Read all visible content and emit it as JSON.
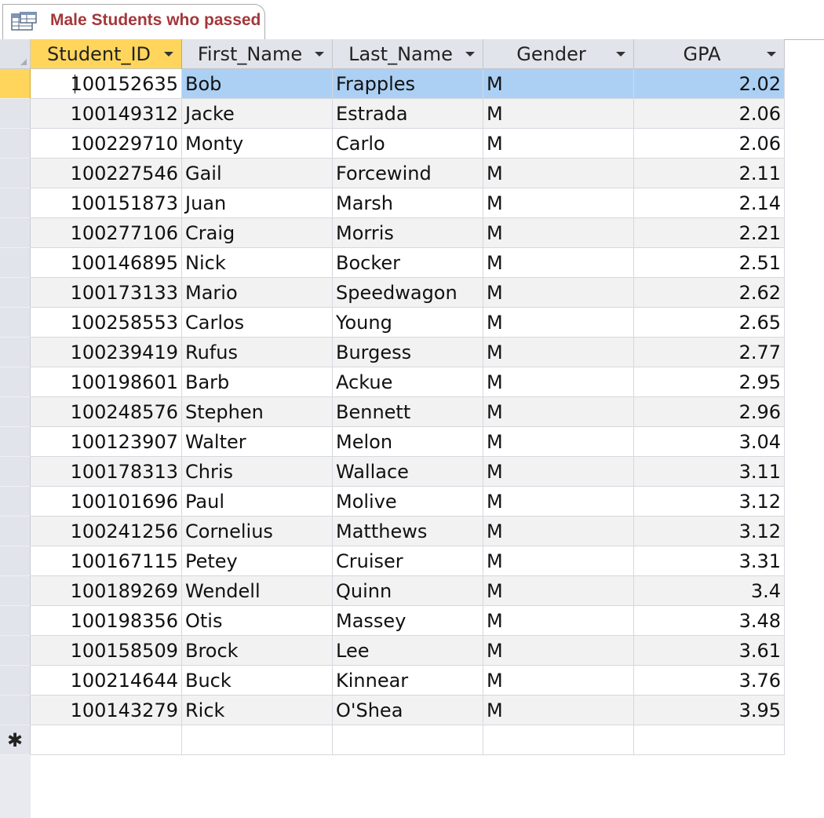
{
  "tab": {
    "title": "Male Students who passed",
    "icon": "datasheet-icon"
  },
  "columns": [
    {
      "key": "student_id",
      "label": "Student_ID"
    },
    {
      "key": "first_name",
      "label": "First_Name"
    },
    {
      "key": "last_name",
      "label": "Last_Name"
    },
    {
      "key": "gender",
      "label": "Gender"
    },
    {
      "key": "gpa",
      "label": "GPA"
    }
  ],
  "rows": [
    {
      "student_id": "100152635",
      "first_name": "Bob",
      "last_name": "Frapples",
      "gender": "M",
      "gpa": "2.02"
    },
    {
      "student_id": "100149312",
      "first_name": "Jacke",
      "last_name": "Estrada",
      "gender": "M",
      "gpa": "2.06"
    },
    {
      "student_id": "100229710",
      "first_name": "Monty",
      "last_name": "Carlo",
      "gender": "M",
      "gpa": "2.06"
    },
    {
      "student_id": "100227546",
      "first_name": "Gail",
      "last_name": "Forcewind",
      "gender": "M",
      "gpa": "2.11"
    },
    {
      "student_id": "100151873",
      "first_name": "Juan",
      "last_name": "Marsh",
      "gender": "M",
      "gpa": "2.14"
    },
    {
      "student_id": "100277106",
      "first_name": "Craig",
      "last_name": "Morris",
      "gender": "M",
      "gpa": "2.21"
    },
    {
      "student_id": "100146895",
      "first_name": "Nick",
      "last_name": "Bocker",
      "gender": "M",
      "gpa": "2.51"
    },
    {
      "student_id": "100173133",
      "first_name": "Mario",
      "last_name": "Speedwagon",
      "gender": "M",
      "gpa": "2.62"
    },
    {
      "student_id": "100258553",
      "first_name": "Carlos",
      "last_name": "Young",
      "gender": "M",
      "gpa": "2.65"
    },
    {
      "student_id": "100239419",
      "first_name": "Rufus",
      "last_name": "Burgess",
      "gender": "M",
      "gpa": "2.77"
    },
    {
      "student_id": "100198601",
      "first_name": "Barb",
      "last_name": "Ackue",
      "gender": "M",
      "gpa": "2.95"
    },
    {
      "student_id": "100248576",
      "first_name": "Stephen",
      "last_name": "Bennett",
      "gender": "M",
      "gpa": "2.96"
    },
    {
      "student_id": "100123907",
      "first_name": "Walter",
      "last_name": "Melon",
      "gender": "M",
      "gpa": "3.04"
    },
    {
      "student_id": "100178313",
      "first_name": "Chris",
      "last_name": "Wallace",
      "gender": "M",
      "gpa": "3.11"
    },
    {
      "student_id": "100101696",
      "first_name": "Paul",
      "last_name": "Molive",
      "gender": "M",
      "gpa": "3.12"
    },
    {
      "student_id": "100241256",
      "first_name": "Cornelius",
      "last_name": "Matthews",
      "gender": "M",
      "gpa": "3.12"
    },
    {
      "student_id": "100167115",
      "first_name": "Petey",
      "last_name": "Cruiser",
      "gender": "M",
      "gpa": "3.31"
    },
    {
      "student_id": "100189269",
      "first_name": "Wendell",
      "last_name": "Quinn",
      "gender": "M",
      "gpa": "3.4"
    },
    {
      "student_id": "100198356",
      "first_name": "Otis",
      "last_name": "Massey",
      "gender": "M",
      "gpa": "3.48"
    },
    {
      "student_id": "100158509",
      "first_name": "Brock",
      "last_name": "Lee",
      "gender": "M",
      "gpa": "3.61"
    },
    {
      "student_id": "100214644",
      "first_name": "Buck",
      "last_name": "Kinnear",
      "gender": "M",
      "gpa": "3.76"
    },
    {
      "student_id": "100143279",
      "first_name": "Rick",
      "last_name": "O'Shea",
      "gender": "M",
      "gpa": "3.95"
    }
  ],
  "new_record": {
    "marker": "✱",
    "icon": "new-record-icon"
  },
  "colors": {
    "tab_title": "#a4373a",
    "selected_row": "#acd0f4",
    "active_header": "#ffd55c",
    "header": "#e1e4ea"
  }
}
